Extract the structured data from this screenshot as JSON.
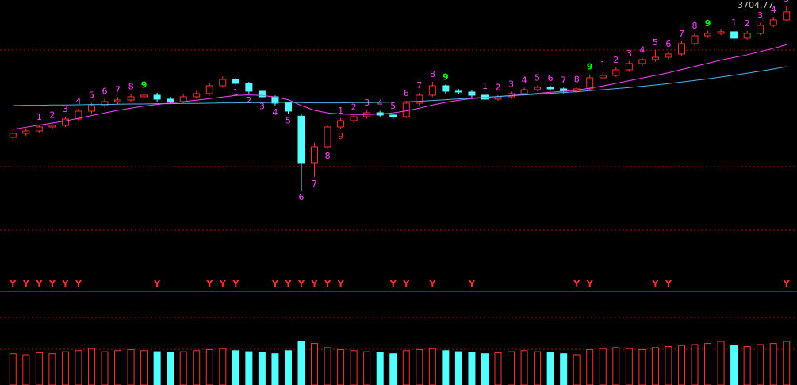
{
  "chart_data": {
    "type": "candlestick",
    "open": [
      3210,
      3225,
      3234,
      3249,
      3255,
      3279,
      3309,
      3330,
      3345,
      3351,
      3363,
      3369,
      3354,
      3345,
      3363,
      3375,
      3405,
      3429,
      3414,
      3384,
      3363,
      3339,
      3290,
      3114,
      3174,
      3249,
      3273,
      3288,
      3303,
      3294,
      3288,
      3339,
      3369,
      3405,
      3384,
      3381,
      3369,
      3354,
      3363,
      3375,
      3390,
      3399,
      3393,
      3384,
      3393,
      3435,
      3444,
      3465,
      3489,
      3504,
      3513,
      3525,
      3564,
      3594,
      3603,
      3609,
      3585,
      3603,
      3633,
      3654
    ],
    "high": [
      3238,
      3245,
      3258,
      3266,
      3288,
      3318,
      3340,
      3356,
      3362,
      3374,
      3380,
      3378,
      3362,
      3372,
      3386,
      3414,
      3440,
      3436,
      3420,
      3390,
      3368,
      3345,
      3300,
      3190,
      3258,
      3282,
      3296,
      3312,
      3310,
      3300,
      3348,
      3378,
      3420,
      3410,
      3392,
      3388,
      3375,
      3370,
      3382,
      3398,
      3406,
      3405,
      3398,
      3400,
      3448,
      3456,
      3474,
      3498,
      3512,
      3540,
      3534,
      3573,
      3603,
      3612,
      3618,
      3615,
      3612,
      3642,
      3663,
      3704.77
    ],
    "low": [
      3198,
      3215,
      3226,
      3240,
      3248,
      3270,
      3300,
      3322,
      3336,
      3342,
      3355,
      3345,
      3336,
      3338,
      3356,
      3368,
      3398,
      3405,
      3375,
      3352,
      3330,
      3298,
      3009,
      3060,
      3165,
      3240,
      3264,
      3280,
      3286,
      3279,
      3282,
      3330,
      3362,
      3375,
      3372,
      3360,
      3345,
      3348,
      3356,
      3368,
      3384,
      3386,
      3376,
      3378,
      3388,
      3428,
      3438,
      3458,
      3480,
      3496,
      3505,
      3518,
      3556,
      3586,
      3596,
      3570,
      3576,
      3596,
      3626,
      3648
    ],
    "close": [
      3225,
      3234,
      3249,
      3255,
      3279,
      3309,
      3330,
      3345,
      3351,
      3363,
      3369,
      3354,
      3345,
      3363,
      3375,
      3405,
      3429,
      3414,
      3384,
      3363,
      3339,
      3309,
      3114,
      3174,
      3249,
      3273,
      3288,
      3303,
      3294,
      3288,
      3339,
      3369,
      3405,
      3384,
      3381,
      3369,
      3354,
      3363,
      3375,
      3390,
      3399,
      3393,
      3384,
      3393,
      3435,
      3444,
      3465,
      3489,
      3504,
      3513,
      3525,
      3564,
      3594,
      3603,
      3609,
      3585,
      3603,
      3633,
      3654,
      3684
    ],
    "volume": [
      300,
      290,
      310,
      300,
      320,
      330,
      350,
      320,
      330,
      340,
      330,
      320,
      310,
      320,
      330,
      340,
      350,
      330,
      320,
      310,
      300,
      330,
      420,
      400,
      360,
      340,
      330,
      320,
      310,
      300,
      330,
      340,
      350,
      330,
      320,
      310,
      300,
      310,
      320,
      330,
      320,
      310,
      300,
      290,
      340,
      350,
      360,
      350,
      340,
      360,
      370,
      380,
      390,
      400,
      420,
      380,
      370,
      390,
      400,
      420
    ],
    "moving_averages": [
      {
        "color": "#ff44ff",
        "values": [
          3240,
          3248,
          3256,
          3264,
          3272,
          3282,
          3292,
          3302,
          3312,
          3320,
          3328,
          3334,
          3340,
          3345,
          3350,
          3356,
          3362,
          3368,
          3370,
          3368,
          3362,
          3352,
          3330,
          3312,
          3302,
          3298,
          3296,
          3296,
          3298,
          3302,
          3310,
          3320,
          3332,
          3342,
          3350,
          3356,
          3360,
          3364,
          3368,
          3372,
          3376,
          3380,
          3384,
          3388,
          3396,
          3404,
          3414,
          3424,
          3434,
          3444,
          3454,
          3466,
          3478,
          3490,
          3502,
          3512,
          3522,
          3534,
          3546,
          3560
        ]
      },
      {
        "color": "#4fb4e8",
        "values": [
          3330,
          3331,
          3331,
          3332,
          3332,
          3333,
          3334,
          3334,
          3335,
          3336,
          3336,
          3337,
          3337,
          3338,
          3338,
          3339,
          3340,
          3340,
          3341,
          3341,
          3342,
          3342,
          3341,
          3340,
          3340,
          3340,
          3341,
          3341,
          3342,
          3343,
          3344,
          3346,
          3349,
          3352,
          3355,
          3358,
          3361,
          3364,
          3367,
          3370,
          3373,
          3376,
          3379,
          3382,
          3386,
          3390,
          3394,
          3398,
          3403,
          3408,
          3413,
          3419,
          3425,
          3431,
          3438,
          3445,
          3452,
          3460,
          3468,
          3477
        ]
      }
    ],
    "up_counts": [
      null,
      null,
      1,
      2,
      3,
      4,
      5,
      6,
      7,
      8,
      9,
      null,
      null,
      null,
      null,
      null,
      null,
      null,
      null,
      null,
      null,
      null,
      null,
      null,
      null,
      1,
      2,
      3,
      4,
      5,
      6,
      7,
      8,
      9,
      null,
      null,
      1,
      2,
      3,
      4,
      5,
      6,
      7,
      8,
      9,
      1,
      2,
      3,
      4,
      5,
      6,
      7,
      8,
      9,
      null,
      1,
      2,
      3,
      4,
      5
    ],
    "down_counts": [
      null,
      null,
      null,
      null,
      null,
      null,
      null,
      null,
      null,
      null,
      null,
      null,
      null,
      null,
      null,
      null,
      null,
      1,
      2,
      3,
      4,
      5,
      6,
      7,
      8,
      9,
      null,
      null,
      null,
      null,
      null,
      null,
      null,
      null,
      null,
      null,
      null,
      null,
      null,
      null,
      null,
      null,
      null,
      null,
      null,
      null,
      null,
      null,
      null,
      null,
      null,
      null,
      null,
      null,
      null,
      null,
      null,
      null,
      null,
      null
    ],
    "signals": [
      "Y",
      "Y",
      "Y",
      "Y",
      "Y",
      "Y",
      null,
      null,
      null,
      null,
      null,
      "Y",
      null,
      null,
      null,
      "Y",
      "Y",
      "Y",
      null,
      null,
      "Y",
      "Y",
      "Y",
      "Y",
      "Y",
      "Y",
      null,
      null,
      null,
      "Y",
      "Y",
      null,
      "Y",
      null,
      null,
      "Y",
      null,
      null,
      null,
      null,
      null,
      null,
      null,
      "Y",
      "Y",
      null,
      null,
      null,
      null,
      "Y",
      "Y",
      null,
      null,
      null,
      null,
      null,
      null,
      null,
      null,
      "Y"
    ],
    "up_color": "#ff3232",
    "down_color": "#54ffff"
  }
}
